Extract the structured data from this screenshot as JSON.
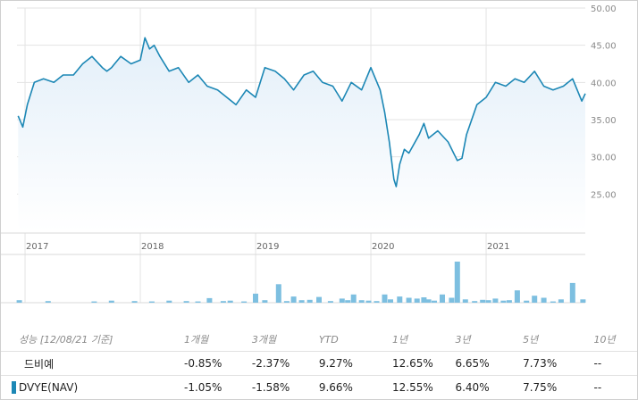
{
  "colors": {
    "line": "#1c87b5",
    "area_top": "#e3eff9",
    "area_bottom": "#ffffff",
    "volume_bar": "#7dbfe0",
    "grid": "#e3e3e3",
    "axis_text": "#8a8a8a"
  },
  "chart_data": [
    {
      "type": "area",
      "xlabel": "",
      "ylabel": "",
      "x_range": [
        2016.93,
        2021.86
      ],
      "ylim": [
        20,
        50
      ],
      "ytick_values": [
        25,
        30,
        35,
        40,
        45,
        50
      ],
      "ytick_labels": [
        "25.00",
        "30.00",
        "35.00",
        "40.00",
        "45.00",
        "50.00"
      ],
      "xtick_values": [
        2017,
        2018,
        2019,
        2020,
        2021
      ],
      "xtick_labels": [
        "2017",
        "2018",
        "2019",
        "2020",
        "2021"
      ],
      "grid": true,
      "series": [
        {
          "x": [
            2016.94,
            2016.98,
            2017.02,
            2017.08,
            2017.16,
            2017.25,
            2017.33,
            2017.42,
            2017.5,
            2017.58,
            2017.67,
            2017.71,
            2017.75,
            2017.83,
            2017.92,
            2018.0,
            2018.04,
            2018.08,
            2018.12,
            2018.17,
            2018.25,
            2018.33,
            2018.42,
            2018.5,
            2018.58,
            2018.67,
            2018.75,
            2018.83,
            2018.92,
            2019.0,
            2019.08,
            2019.17,
            2019.25,
            2019.33,
            2019.42,
            2019.5,
            2019.58,
            2019.67,
            2019.75,
            2019.83,
            2019.92,
            2020.0,
            2020.04,
            2020.08,
            2020.12,
            2020.16,
            2020.2,
            2020.22,
            2020.25,
            2020.29,
            2020.33,
            2020.42,
            2020.46,
            2020.5,
            2020.58,
            2020.67,
            2020.75,
            2020.79,
            2020.83,
            2020.92,
            2021.0,
            2021.08,
            2021.17,
            2021.25,
            2021.33,
            2021.42,
            2021.5,
            2021.58,
            2021.67,
            2021.75,
            2021.83,
            2021.86
          ],
          "values": [
            35.5,
            34.0,
            37.0,
            40.0,
            40.5,
            40.0,
            41.0,
            41.0,
            42.5,
            43.5,
            42.0,
            41.5,
            42.0,
            43.5,
            42.5,
            43.0,
            46.0,
            44.5,
            45.0,
            43.5,
            41.5,
            42.0,
            40.0,
            41.0,
            39.5,
            39.0,
            38.0,
            37.0,
            39.0,
            38.0,
            42.0,
            41.5,
            40.5,
            39.0,
            41.0,
            41.5,
            40.0,
            39.5,
            37.5,
            40.0,
            39.0,
            42.0,
            40.5,
            39.0,
            36.0,
            32.0,
            27.0,
            26.0,
            29.0,
            31.0,
            30.5,
            33.0,
            34.5,
            32.5,
            33.5,
            32.0,
            29.5,
            29.8,
            33.0,
            37.0,
            38.0,
            40.0,
            39.5,
            40.5,
            40.0,
            41.5,
            39.5,
            39.0,
            39.5,
            40.5,
            37.5,
            38.5
          ]
        }
      ]
    },
    {
      "type": "bar",
      "title": "",
      "x": [
        2016.95,
        2017.2,
        2017.6,
        2017.75,
        2017.95,
        2018.1,
        2018.25,
        2018.4,
        2018.5,
        2018.6,
        2018.72,
        2018.78,
        2018.9,
        2019.0,
        2019.08,
        2019.2,
        2019.27,
        2019.33,
        2019.4,
        2019.47,
        2019.55,
        2019.65,
        2019.75,
        2019.8,
        2019.85,
        2019.92,
        2019.98,
        2020.05,
        2020.12,
        2020.17,
        2020.25,
        2020.33,
        2020.4,
        2020.46,
        2020.5,
        2020.55,
        2020.62,
        2020.7,
        2020.75,
        2020.82,
        2020.9,
        2020.97,
        2021.02,
        2021.08,
        2021.15,
        2021.2,
        2021.27,
        2021.35,
        2021.42,
        2021.5,
        2021.58,
        2021.65,
        2021.75,
        2021.84
      ],
      "values": [
        0.06,
        0.04,
        0.03,
        0.05,
        0.04,
        0.03,
        0.05,
        0.04,
        0.03,
        0.11,
        0.04,
        0.05,
        0.03,
        0.22,
        0.06,
        0.45,
        0.04,
        0.15,
        0.06,
        0.07,
        0.14,
        0.04,
        0.1,
        0.06,
        0.2,
        0.06,
        0.05,
        0.04,
        0.2,
        0.08,
        0.15,
        0.12,
        0.1,
        0.13,
        0.08,
        0.05,
        0.2,
        0.12,
        1.0,
        0.08,
        0.04,
        0.07,
        0.06,
        0.1,
        0.05,
        0.06,
        0.3,
        0.05,
        0.17,
        0.12,
        0.03,
        0.08,
        0.48,
        0.08
      ]
    }
  ],
  "performance": {
    "header": [
      "성능 [12/08/21 기준]",
      "1개월",
      "3개월",
      "YTD",
      "1년",
      "3년",
      "5년",
      "10년"
    ],
    "rows": [
      {
        "label": "드비예",
        "values": [
          "-0.85%",
          "-2.37%",
          "9.27%",
          "12.65%",
          "6.65%",
          "7.73%",
          "--"
        ]
      },
      {
        "label": "DVYE(NAV)",
        "values": [
          "-1.05%",
          "-1.58%",
          "9.66%",
          "12.55%",
          "6.40%",
          "7.75%",
          "--"
        ]
      }
    ]
  }
}
